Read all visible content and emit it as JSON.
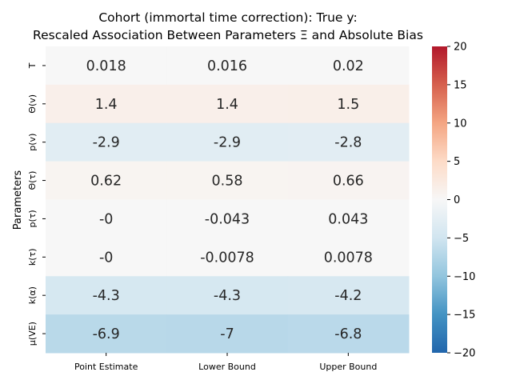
{
  "chart_data": {
    "type": "heatmap",
    "title_lines": [
      "Cohort (immortal time correction): True y:",
      "Rescaled Association Between Parameters Ξ and Absolute Bias"
    ],
    "xlabel": "",
    "ylabel": "Parameters",
    "columns": [
      "Point Estimate",
      "Lower Bound",
      "Upper Bound"
    ],
    "rows": [
      "T",
      "Θ(v)",
      "p(v)",
      "Θ(τ)",
      "p(τ)",
      "k(τ)",
      "k(α)",
      "μ(VE)"
    ],
    "values": [
      [
        0.018,
        0.016,
        0.02
      ],
      [
        1.4,
        1.4,
        1.5
      ],
      [
        -2.9,
        -2.9,
        -2.8
      ],
      [
        0.62,
        0.58,
        0.66
      ],
      [
        0,
        -0.043,
        0.043
      ],
      [
        0,
        -0.0078,
        0.0078
      ],
      [
        -4.3,
        -4.3,
        -4.2
      ],
      [
        -6.9,
        -7,
        -6.8
      ]
    ],
    "labels": [
      [
        "0.018",
        "0.016",
        "0.02"
      ],
      [
        "1.4",
        "1.4",
        "1.5"
      ],
      [
        "-2.9",
        "-2.9",
        "-2.8"
      ],
      [
        "0.62",
        "0.58",
        "0.66"
      ],
      [
        "-0",
        "-0.043",
        "0.043"
      ],
      [
        "-0",
        "-0.0078",
        "0.0078"
      ],
      [
        "-4.3",
        "-4.3",
        "-4.2"
      ],
      [
        "-6.9",
        "-7",
        "-6.8"
      ]
    ],
    "colormap": "vlag (blue-white-red)",
    "colormap_stops": [
      "#2166ac",
      "#4393c3",
      "#92c5de",
      "#d1e5f0",
      "#f7f7f7",
      "#fddbc7",
      "#f4a582",
      "#d6604d",
      "#b2182b"
    ],
    "vmin": -20,
    "vmax": 20,
    "colorbar_ticks": [
      20,
      15,
      10,
      5,
      0,
      -5,
      -10,
      -15,
      -20
    ],
    "colorbar_tick_labels": [
      "20",
      "15",
      "10",
      "5",
      "0",
      "−5",
      "−10",
      "−15",
      "−20"
    ]
  }
}
